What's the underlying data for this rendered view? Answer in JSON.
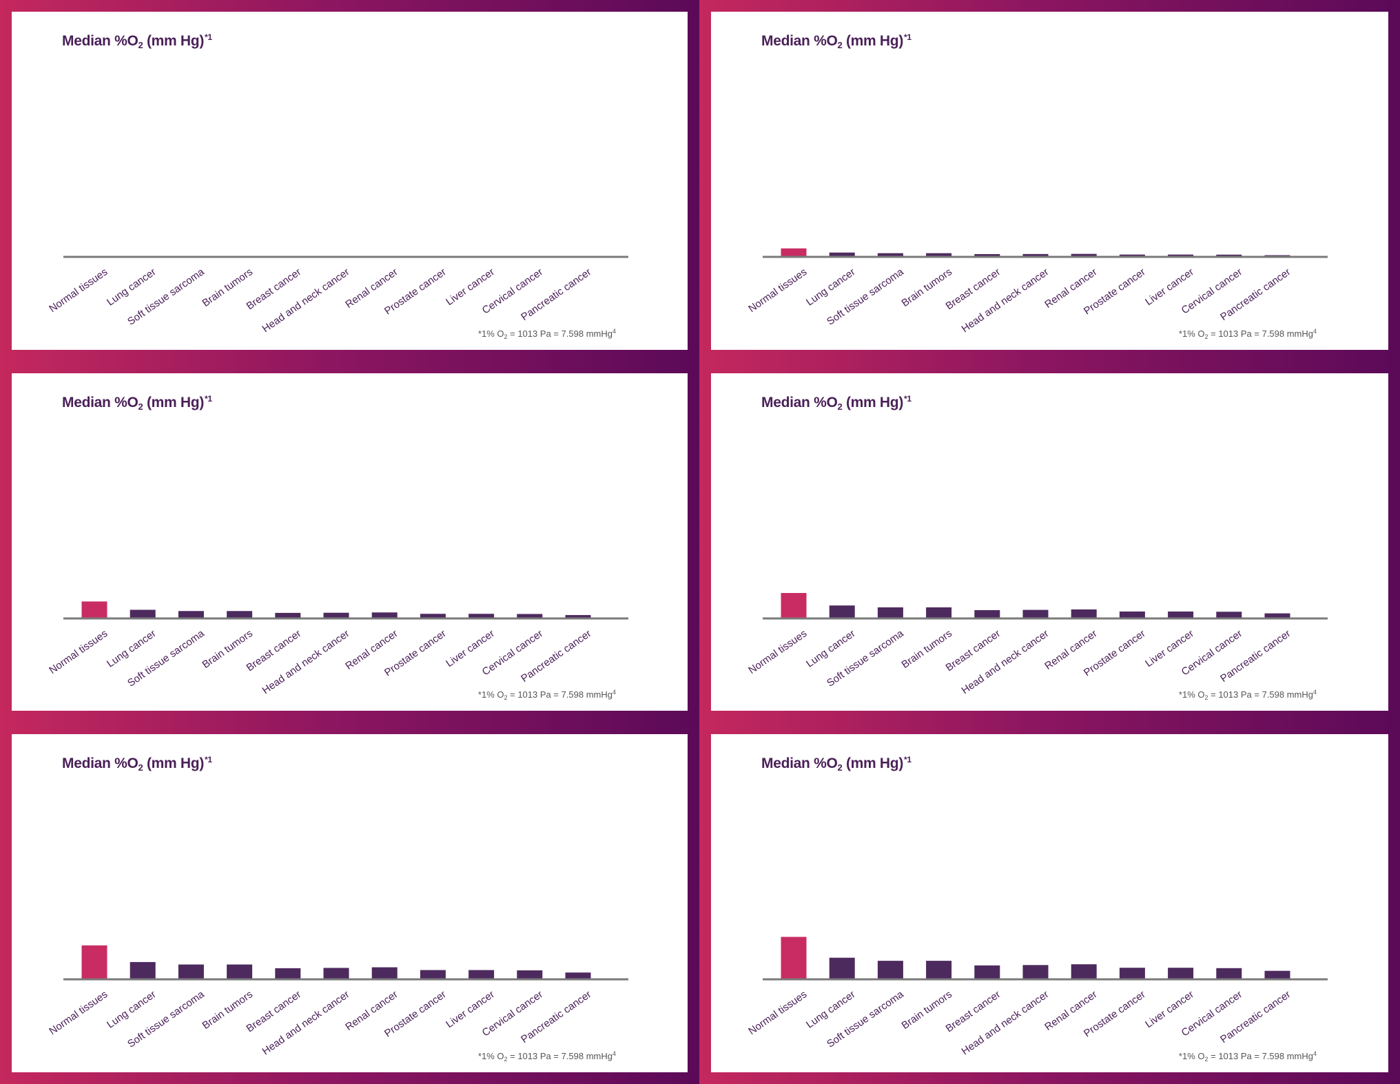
{
  "colors": {
    "frame_start": "#c4285d",
    "frame_mid": "#8a1560",
    "frame_end": "#5b0a58",
    "highlight_bar": "#c92c62",
    "bar": "#4d2a5e",
    "baseline": "#7a7a7a",
    "title": "#4a2058"
  },
  "title": {
    "main": "Median %O",
    "sub": "2",
    "rest": " (mm Hg)",
    "sup": "*1"
  },
  "footnote": {
    "pre": "*1% O",
    "sub": "2",
    "post": " = 1013 Pa = 7.598 mmHg",
    "sup": "4"
  },
  "chart_data": [
    {
      "type": "bar",
      "categories": [
        "Normal tissues",
        "Lung cancer",
        "Soft tissue sarcoma",
        "Brain tumors",
        "Breast cancer",
        "Head and neck cancer",
        "Renal cancer",
        "Prostate cancer",
        "Liver cancer",
        "Cervical cancer",
        "Pancreatic cancer"
      ],
      "values": [
        0,
        0,
        0,
        0,
        0,
        0,
        0,
        0,
        0,
        0,
        0
      ],
      "highlight": "Normal tissues"
    },
    {
      "type": "bar",
      "categories": [
        "Normal tissues",
        "Lung cancer",
        "Soft tissue sarcoma",
        "Brain tumors",
        "Breast cancer",
        "Head and neck cancer",
        "Renal cancer",
        "Prostate cancer",
        "Liver cancer",
        "Cervical cancer",
        "Pancreatic cancer"
      ],
      "values": [
        11,
        5.6,
        4.8,
        4.8,
        3.6,
        3.7,
        3.9,
        3.0,
        3.0,
        2.9,
        2.2
      ],
      "highlight": "Normal tissues"
    },
    {
      "type": "bar",
      "categories": [
        "Normal tissues",
        "Lung cancer",
        "Soft tissue sarcoma",
        "Brain tumors",
        "Breast cancer",
        "Head and neck cancer",
        "Renal cancer",
        "Prostate cancer",
        "Liver cancer",
        "Cervical cancer",
        "Pancreatic cancer"
      ],
      "values": [
        22,
        11.2,
        9.6,
        9.6,
        7.2,
        7.4,
        7.8,
        6.0,
        6.0,
        5.8,
        4.4
      ],
      "highlight": "Normal tissues"
    },
    {
      "type": "bar",
      "categories": [
        "Normal tissues",
        "Lung cancer",
        "Soft tissue sarcoma",
        "Brain tumors",
        "Breast cancer",
        "Head and neck cancer",
        "Renal cancer",
        "Prostate cancer",
        "Liver cancer",
        "Cervical cancer",
        "Pancreatic cancer"
      ],
      "values": [
        33,
        16.8,
        14.4,
        14.4,
        10.8,
        11.1,
        11.7,
        9.0,
        9.0,
        8.7,
        6.6
      ],
      "highlight": "Normal tissues"
    },
    {
      "type": "bar",
      "categories": [
        "Normal tissues",
        "Lung cancer",
        "Soft tissue sarcoma",
        "Brain tumors",
        "Breast cancer",
        "Head and neck cancer",
        "Renal cancer",
        "Prostate cancer",
        "Liver cancer",
        "Cervical cancer",
        "Pancreatic cancer"
      ],
      "values": [
        44,
        22.4,
        19.2,
        19.2,
        14.4,
        14.8,
        15.6,
        12.0,
        12.0,
        11.6,
        8.8
      ],
      "highlight": "Normal tissues"
    },
    {
      "type": "bar",
      "categories": [
        "Normal tissues",
        "Lung cancer",
        "Soft tissue sarcoma",
        "Brain tumors",
        "Breast cancer",
        "Head and neck cancer",
        "Renal cancer",
        "Prostate cancer",
        "Liver cancer",
        "Cervical cancer",
        "Pancreatic cancer"
      ],
      "values": [
        55,
        28,
        24,
        24,
        18,
        18.5,
        19.5,
        15,
        15,
        14.5,
        11
      ],
      "highlight": "Normal tissues"
    }
  ]
}
